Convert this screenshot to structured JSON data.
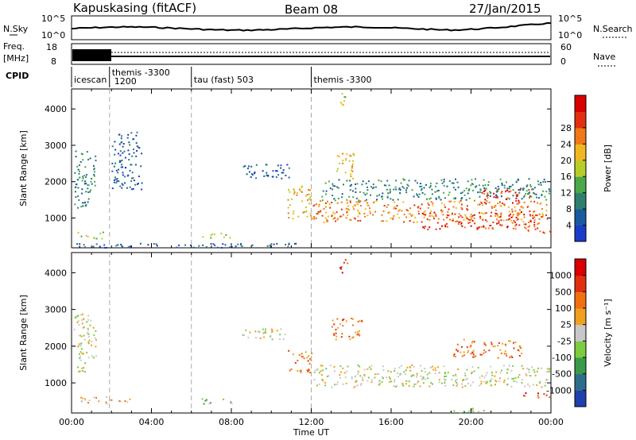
{
  "header": {
    "station": "Kapuskasing (fitACF)",
    "beam": "Beam 08",
    "date": "27/Jan/2015"
  },
  "status_panels": {
    "nsky_label": "N.Sky",
    "nsky_ticks": [
      "10^5",
      "10^0"
    ],
    "nsearch_label": "N.Search",
    "nsearch_ticks": [
      "10^5",
      "10^0"
    ],
    "freq_label_1": "Freq.",
    "freq_label_2": "[MHz]",
    "freq_ticks": [
      "18",
      "8"
    ],
    "nave_label": "Nave",
    "nave_ticks": [
      "60",
      "0"
    ],
    "cpid_label": "CPID"
  },
  "cpid_segments": [
    {
      "label": "icescan",
      "start_h": 0.0,
      "end_h": 1.9
    },
    {
      "label": "themis -3300",
      "label2": "1200",
      "start_h": 1.9,
      "end_h": 6.0
    },
    {
      "label": "tau (fast) 503",
      "start_h": 6.0,
      "end_h": 12.0
    },
    {
      "label": "themis -3300",
      "start_h": 12.0,
      "end_h": 24.0
    }
  ],
  "chart_data": [
    {
      "type": "heatmap",
      "title": "",
      "xlabel": "",
      "ylabel": "Slant Range [km]",
      "xlim_h": [
        0,
        24
      ],
      "ylim": [
        180,
        4550
      ],
      "yticks": [
        "1000",
        "2000",
        "3000",
        "4000"
      ],
      "colorbar_label": "Power [dB]",
      "colorbar_ticks": [
        "4",
        "8",
        "12",
        "16",
        "20",
        "24",
        "28"
      ],
      "colorbar_colors": [
        "#1c3cc8",
        "#1a5aa0",
        "#2e7f6e",
        "#4aa84a",
        "#b8cc2a",
        "#f0b820",
        "#f07818",
        "#e03010",
        "#d80000"
      ],
      "regions": [
        {
          "t0": 0.1,
          "t1": 1.2,
          "r0": 1300,
          "r1": 2900,
          "level": 2
        },
        {
          "t0": 0.3,
          "t1": 1.6,
          "r0": 450,
          "r1": 650,
          "level": 4
        },
        {
          "t0": 2.0,
          "t1": 3.5,
          "r0": 1800,
          "r1": 3400,
          "level": 1
        },
        {
          "t0": 6.5,
          "t1": 8.0,
          "r0": 450,
          "r1": 600,
          "level": 4
        },
        {
          "t0": 8.5,
          "t1": 11.0,
          "r0": 2100,
          "r1": 2500,
          "level": 1
        },
        {
          "t0": 10.8,
          "t1": 12.0,
          "r0": 1000,
          "r1": 1900,
          "level": 5
        },
        {
          "t0": 12.0,
          "t1": 23.9,
          "r0": 900,
          "r1": 1500,
          "level": 6
        },
        {
          "t0": 12.5,
          "t1": 23.9,
          "r0": 1500,
          "r1": 2100,
          "level": 2
        },
        {
          "t0": 13.2,
          "t1": 14.2,
          "r0": 2100,
          "r1": 2800,
          "level": 5
        },
        {
          "t0": 13.4,
          "t1": 13.8,
          "r0": 4000,
          "r1": 4450,
          "level": 4
        },
        {
          "t0": 17.5,
          "t1": 23.5,
          "r0": 700,
          "r1": 1200,
          "level": 7
        },
        {
          "t0": 20.5,
          "t1": 23.0,
          "r0": 1400,
          "r1": 1800,
          "level": 7
        },
        {
          "t0": 22.5,
          "t1": 24.0,
          "r0": 600,
          "r1": 750,
          "level": 7
        },
        {
          "t0": 0.0,
          "t1": 12.0,
          "r0": 200,
          "r1": 320,
          "level": 1
        }
      ]
    },
    {
      "type": "heatmap",
      "title": "",
      "xlabel": "Time UT",
      "ylabel": "Slant Range [km]",
      "xlim_h": [
        0,
        24
      ],
      "ylim": [
        180,
        4550
      ],
      "yticks": [
        "1000",
        "2000",
        "3000",
        "4000"
      ],
      "xticks": [
        "00:00",
        "04:00",
        "08:00",
        "12:00",
        "16:00",
        "20:00",
        "00:00"
      ],
      "colorbar_label": "Velocity [m s⁻¹]",
      "colorbar_ticks": [
        "1000",
        "500",
        "100",
        "25",
        "-25",
        "-100",
        "-500",
        "-1000"
      ],
      "colorbar_colors": [
        "#2040b0",
        "#2f6e8a",
        "#3a9a4a",
        "#7ccc40",
        "#c8c8c8",
        "#f0a020",
        "#f07010",
        "#e03010",
        "#d80000"
      ],
      "regions": [
        {
          "t0": 0.1,
          "t1": 1.2,
          "r0": 1300,
          "r1": 2900,
          "level": 4
        },
        {
          "t0": 0.3,
          "t1": 3.0,
          "r0": 450,
          "r1": 650,
          "level": 5
        },
        {
          "t0": 6.5,
          "t1": 8.0,
          "r0": 450,
          "r1": 600,
          "level": 3
        },
        {
          "t0": 8.5,
          "t1": 11.0,
          "r0": 2200,
          "r1": 2500,
          "level": 4
        },
        {
          "t0": 10.8,
          "t1": 12.0,
          "r0": 1300,
          "r1": 1900,
          "level": 6
        },
        {
          "t0": 12.0,
          "t1": 23.9,
          "r0": 900,
          "r1": 1500,
          "level": 4
        },
        {
          "t0": 13.0,
          "t1": 14.5,
          "r0": 2200,
          "r1": 2800,
          "level": 6
        },
        {
          "t0": 13.4,
          "t1": 13.8,
          "r0": 4000,
          "r1": 4450,
          "level": 7
        },
        {
          "t0": 19.0,
          "t1": 22.5,
          "r0": 1700,
          "r1": 2200,
          "level": 6
        },
        {
          "t0": 22.5,
          "t1": 24.0,
          "r0": 600,
          "r1": 750,
          "level": 7
        },
        {
          "t0": 18.5,
          "t1": 21.0,
          "r0": 200,
          "r1": 320,
          "level": 3
        }
      ]
    }
  ]
}
